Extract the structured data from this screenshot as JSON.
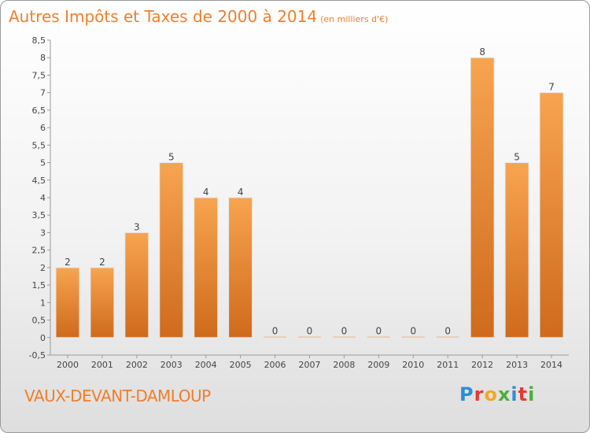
{
  "chart_data": {
    "type": "bar",
    "title": "Autres Impôts et Taxes de 2000 à 2014",
    "subtitle": "(en milliers d'€)",
    "categories": [
      "2000",
      "2001",
      "2002",
      "2003",
      "2004",
      "2005",
      "2006",
      "2007",
      "2008",
      "2009",
      "2010",
      "2011",
      "2012",
      "2013",
      "2014"
    ],
    "values": [
      2,
      2,
      3,
      5,
      4,
      4,
      0,
      0,
      0,
      0,
      0,
      0,
      8,
      5,
      7
    ],
    "ylim": [
      -0.5,
      8.5
    ],
    "yticks": [
      "-0,5",
      "0",
      "0,5",
      "1",
      "1,5",
      "2",
      "2,5",
      "3",
      "3,5",
      "4",
      "4,5",
      "5",
      "5,5",
      "6",
      "6,5",
      "7",
      "7,5",
      "8",
      "8,5"
    ],
    "grid": false,
    "bar_color": "#f08a2e"
  },
  "footer": {
    "place": "VAUX-DEVANT-DAMLOUP",
    "logo_letters": [
      {
        "ch": "P",
        "color": "#2a8fd6"
      },
      {
        "ch": "r",
        "color": "#e63a2e"
      },
      {
        "ch": "o",
        "color": "#f5a623"
      },
      {
        "ch": "x",
        "color": "#4caf3a"
      },
      {
        "ch": "i",
        "color": "#2a8fd6"
      },
      {
        "ch": "t",
        "color": "#e63a2e"
      },
      {
        "ch": "i",
        "color": "#4caf3a"
      }
    ]
  }
}
